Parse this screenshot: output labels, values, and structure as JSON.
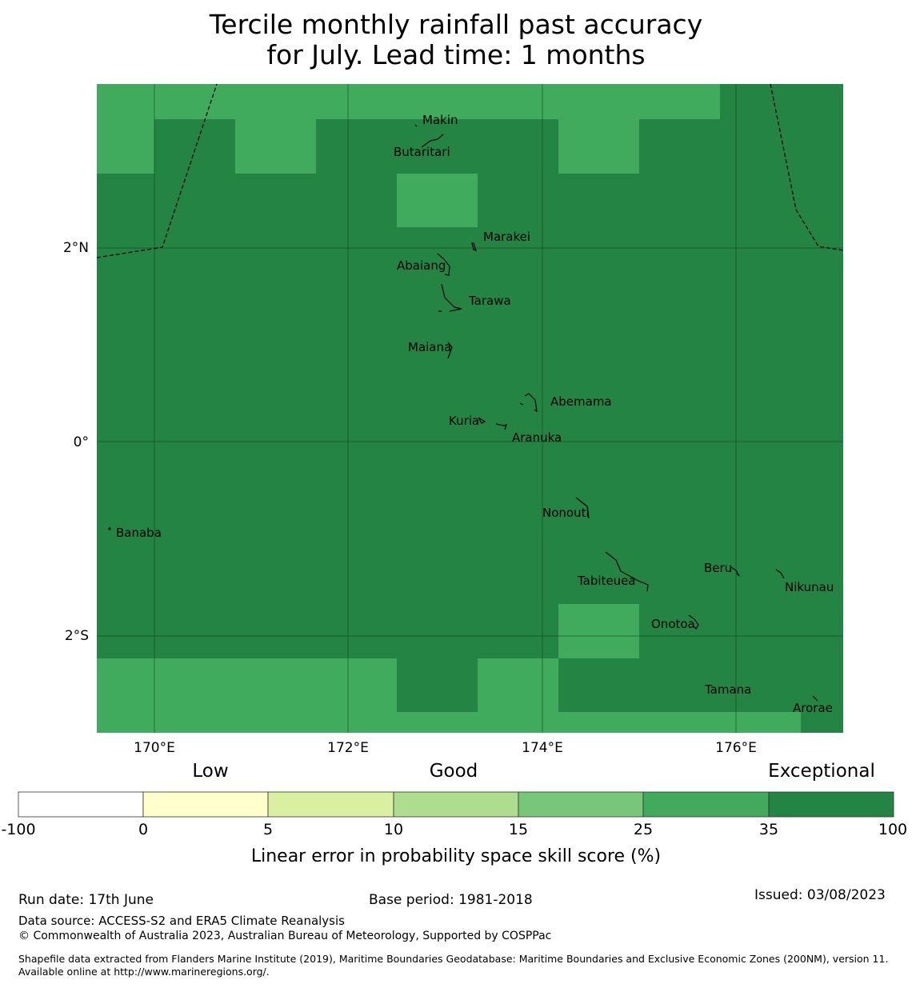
{
  "title_line1": "Tercile monthly rainfall past accuracy",
  "title_line2": "for July. Lead time: 1 months",
  "map": {
    "lat_ticks": [
      "2°N",
      "0°",
      "2°S"
    ],
    "lon_ticks": [
      "170°E",
      "172°E",
      "174°E",
      "176°E"
    ],
    "colors": {
      "class_25_35": "#41ab5d",
      "class_35_100": "#238443"
    },
    "islands": [
      "Makin",
      "Butaritari",
      "Marakei",
      "Abaiang",
      "Tarawa",
      "Maiana",
      "Abemama",
      "Kuria",
      "Aranuka",
      "Nonouti",
      "Banaba",
      "Tabiteuea",
      "Beru",
      "Nikunau",
      "Onotoa",
      "Tamana",
      "Arorae"
    ]
  },
  "legend": {
    "category_labels": [
      "Low",
      "Good",
      "Exceptional"
    ],
    "tick_labels": [
      "-100",
      "0",
      "5",
      "10",
      "15",
      "25",
      "35",
      "100"
    ],
    "colors": [
      "#ffffff",
      "#ffffcc",
      "#d9f0a3",
      "#addd8e",
      "#78c679",
      "#41ab5d",
      "#238443"
    ],
    "title": "Linear error in probability space skill score (%)"
  },
  "footer": {
    "run_date": "Run date: 17th June",
    "base_period": "Base period: 1981-2018",
    "issued": "Issued: 03/08/2023",
    "data_source": "Data source: ACCESS-S2 and ERA5 Climate Reanalysis",
    "copyright": "© Commonwealth of Australia 2023, Australian Bureau of Meteorology, Supported by COSPPac",
    "shapefile_note": "Shapefile data extracted from Flanders Marine Institute (2019), Maritime Boundaries Geodatabase: Maritime Boundaries and Exclusive Economic Zones (200NM), version 11. Available online at http://www.marineregions.org/."
  }
}
